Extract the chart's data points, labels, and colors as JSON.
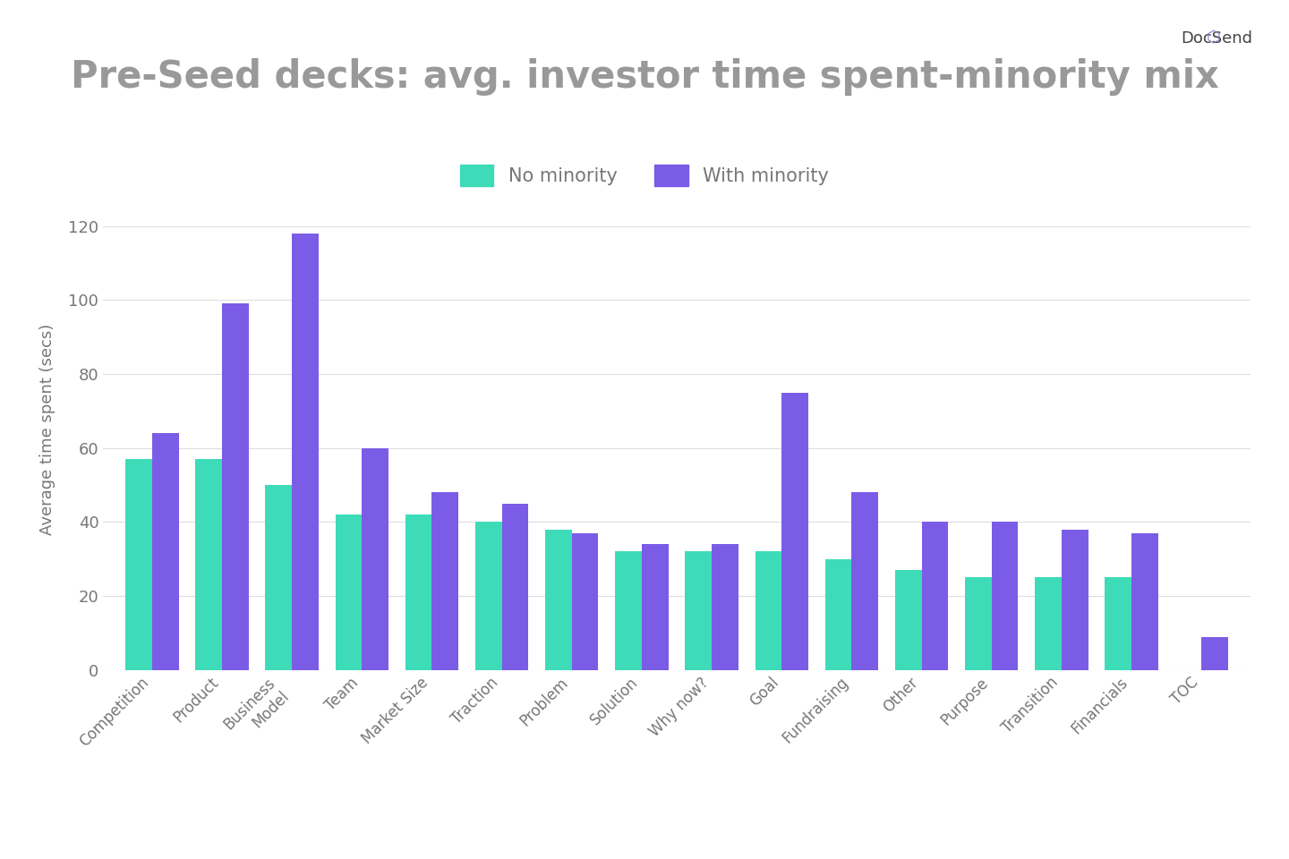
{
  "title": "Pre-Seed decks: avg. investor time spent-minority mix",
  "ylabel": "Average time spent (secs)",
  "categories": [
    "Competition",
    "Product",
    "Business\nModel",
    "Team",
    "Market Size",
    "Traction",
    "Problem",
    "Solution",
    "Why now?",
    "Goal",
    "Fundraising",
    "Other",
    "Purpose",
    "Transition",
    "Financials",
    "TOC"
  ],
  "no_minority": [
    57,
    57,
    50,
    42,
    42,
    40,
    38,
    32,
    32,
    32,
    30,
    27,
    25,
    25,
    25,
    0
  ],
  "with_minority": [
    64,
    99,
    118,
    60,
    48,
    45,
    37,
    34,
    34,
    75,
    48,
    40,
    40,
    38,
    37,
    9
  ],
  "color_no_minority": "#3DDBB8",
  "color_with_minority": "#7B5CE6",
  "background_color": "#FFFFFF",
  "ylim": [
    0,
    130
  ],
  "yticks": [
    0,
    20,
    40,
    60,
    80,
    100,
    120
  ],
  "legend_no_minority": "No minority",
  "legend_with_minority": "With minority",
  "title_color": "#999999",
  "bar_width": 0.38,
  "figsize": [
    14.4,
    9.6
  ],
  "dpi": 100
}
